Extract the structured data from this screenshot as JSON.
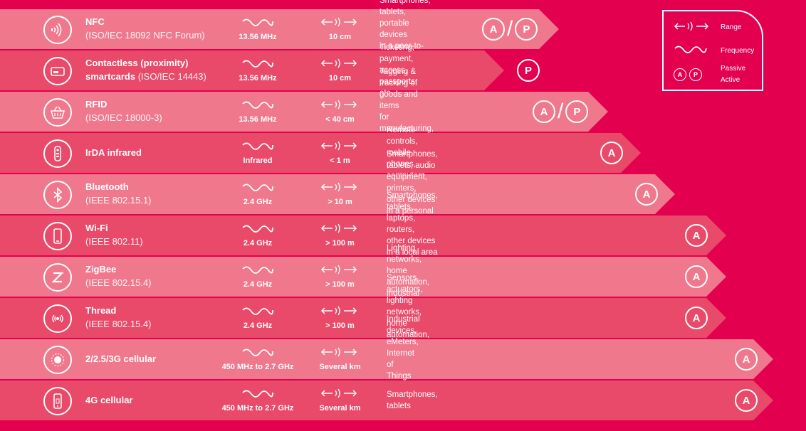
{
  "legend": {
    "range": "Range",
    "frequency": "Frequency",
    "passive": "Passive",
    "active": "Active",
    "passive_symbol": "P",
    "active_symbol": "A"
  },
  "rows": [
    {
      "icon": "nfc-icon",
      "name": "NFC",
      "standard": "(ISO/IEC 18092 NFC Forum)",
      "frequency": "13.56 MHz",
      "range": "10 cm",
      "uses": [
        "Smartphones, tablets,",
        "portable devices",
        "in a peer-to-peer network"
      ],
      "modes": [
        "A",
        "P"
      ]
    },
    {
      "icon": "smartcard-icon",
      "name": "Contactless (proximity)",
      "name2": "smartcards",
      "standard": "(ISO/IEC 14443)",
      "frequency": "13.56 MHz",
      "range": "10 cm",
      "uses": [
        "Ticketing, payment,",
        "access, passports, etc"
      ],
      "modes": [
        "P"
      ]
    },
    {
      "icon": "basket-icon",
      "name": "RFID",
      "standard": "(ISO/IEC 18000-3)",
      "frequency": "13.56 MHz",
      "range": "< 40 cm",
      "uses": [
        "Tagging & tracking of goods and items",
        "for manufacturing, logistics, retail, etc"
      ],
      "modes": [
        "A",
        "P"
      ]
    },
    {
      "icon": "remote-control-icon",
      "name": "IrDA infrared",
      "standard": "",
      "frequency": "Infrared",
      "range": "< 1 m",
      "uses": [
        "Remote controls, mobile phones, computers"
      ],
      "modes": [
        "A"
      ]
    },
    {
      "icon": "bluetooth-icon",
      "name": "Bluetooth",
      "standard": "(IEEE 802.15.1)",
      "frequency": "2.4 GHz",
      "range": "> 10 m",
      "uses": [
        "Smartphones, tablets, audio equipment, printers,",
        "other devices in a personal area network (PAN)"
      ],
      "modes": [
        "A"
      ]
    },
    {
      "icon": "phone-icon",
      "name": "Wi-Fi",
      "standard": "(IEEE 802.11)",
      "frequency": "2.4 GHz",
      "range": "> 100 m",
      "uses": [
        "Smartphones, tablets, laptops, routers,",
        "other devices in a local area network (LAN)"
      ],
      "modes": [
        "A"
      ]
    },
    {
      "icon": "zigbee-icon",
      "name": "ZigBee",
      "standard": "(IEEE 802.15.4)",
      "frequency": "2.4 GHz",
      "range": "> 100 m",
      "uses": [
        "Lighting networks, home automation, industrial control"
      ],
      "modes": [
        "A"
      ]
    },
    {
      "icon": "thread-icon",
      "name": "Thread",
      "standard": "(IEEE 802.15.4)",
      "frequency": "2.4 GHz",
      "range": "> 100 m",
      "uses": [
        "Sensors, actuators, lighting networks, home automation,",
        "industrial control"
      ],
      "modes": [
        "A"
      ]
    },
    {
      "icon": "cellular-tower-icon",
      "name": "2/2.5/3G cellular",
      "standard": "",
      "frequency": "450 MHz to 2.7 GHz",
      "range": "Several km",
      "uses": [
        "Industrial devices, eMeters, Internet of Things (IoT) devices"
      ],
      "modes": [
        "A"
      ]
    },
    {
      "icon": "smartphone-icon",
      "name": "4G cellular",
      "standard": "",
      "frequency": "450 MHz to 2.7 GHz",
      "range": "Several km",
      "uses": [
        "Smartphones, tablets"
      ],
      "modes": [
        "A"
      ]
    }
  ]
}
